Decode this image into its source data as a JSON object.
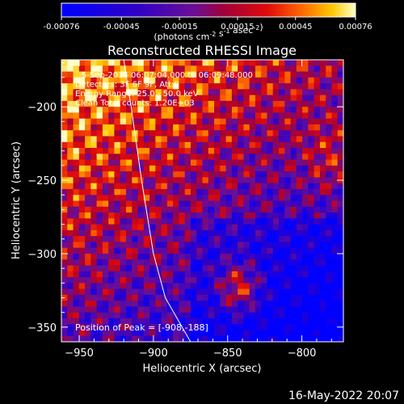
{
  "chart_data": {
    "type": "heatmap",
    "title": "Reconstructed RHESSI Image",
    "xlabel": "Heliocentric X (arcsec)",
    "ylabel": "Heliocentric Y (arcsec)",
    "xlim": [
      -962,
      -772
    ],
    "ylim": [
      -360,
      -168
    ],
    "xticks": [
      -950,
      -900,
      -850,
      -800
    ],
    "yticks": [
      -350,
      -300,
      -250,
      -200
    ],
    "colorbar": {
      "range": [
        -0.00076,
        0.00076
      ],
      "ticks": [
        "-0.00076",
        "-0.00045",
        "-0.00015",
        "0.00015",
        "0.00045",
        "0.00076"
      ],
      "units_prefix": "(photons cm",
      "units_exp1": "-2",
      "units_mid": " s",
      "units_exp2": "-1",
      "units_mid2": " asec",
      "units_exp3": "-2",
      "units_suffix": ")",
      "colormap": "red-temperature"
    },
    "annotations": [
      "5-Sep-2014 06:07:04.000 to 06:09:48.000",
      "Detectors: 3F 6F 9F, Att:0",
      "Energy Range: 25.0 - 50.0 keV",
      "Clean    Total counts: 1.20E+03"
    ],
    "peak_label": "Position of Peak = [-908,-188]",
    "peak": {
      "x": -908,
      "y": -188
    },
    "limb_curve": [
      [
        -920,
        -168
      ],
      [
        -915,
        -200
      ],
      [
        -908,
        -250
      ],
      [
        -900,
        -300
      ],
      [
        -892,
        -330
      ],
      [
        -875,
        -360
      ]
    ]
  },
  "footer": {
    "date": "16-May-2022 20:07"
  }
}
